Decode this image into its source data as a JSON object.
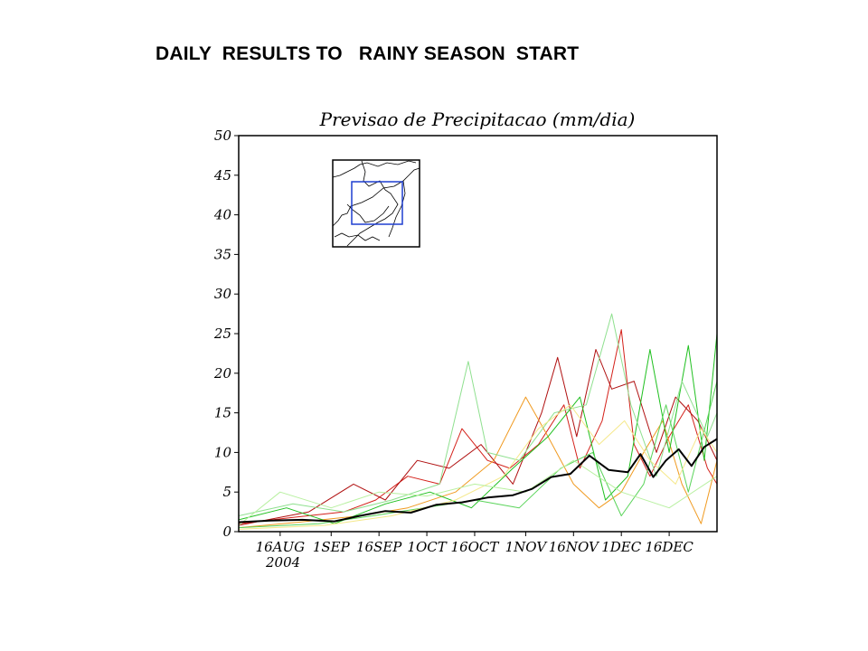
{
  "slide": {
    "title": "DAILY  RESULTS TO   RAINY SEASON  START"
  },
  "chart_data": {
    "type": "line",
    "title": "Previsao de Precipitacao (mm/dia)",
    "xlabel": "",
    "ylabel": "",
    "ylim": [
      0,
      50
    ],
    "yticks": [
      0,
      5,
      10,
      15,
      20,
      25,
      30,
      35,
      40,
      45,
      50
    ],
    "x_start": "2004-08-03",
    "x_end": "2004-12-31",
    "xtick_labels": [
      {
        "date": "2004-08-16",
        "label": "16AUG"
      },
      {
        "date": "2004-09-01",
        "label": "1SEP"
      },
      {
        "date": "2004-09-16",
        "label": "16SEP"
      },
      {
        "date": "2004-10-01",
        "label": "1OCT"
      },
      {
        "date": "2004-10-16",
        "label": "16OCT"
      },
      {
        "date": "2004-11-01",
        "label": "1NOV"
      },
      {
        "date": "2004-11-16",
        "label": "16NOV"
      },
      {
        "date": "2004-12-01",
        "label": "1DEC"
      },
      {
        "date": "2004-12-16",
        "label": "16DEC"
      }
    ],
    "year_label": "2004",
    "grid": false,
    "inset_map": {
      "region": "South America (Brazil) with highlighted study box",
      "box_color": "#1f3fd0"
    },
    "series": [
      {
        "color": "#000000",
        "width": 2,
        "points": [
          [
            "2004-08-03",
            1.2
          ],
          [
            "2004-08-13",
            1.4
          ],
          [
            "2004-08-23",
            1.5
          ],
          [
            "2004-09-02",
            1.3
          ],
          [
            "2004-09-10",
            2.0
          ],
          [
            "2004-09-18",
            2.6
          ],
          [
            "2004-09-26",
            2.4
          ],
          [
            "2004-10-04",
            3.4
          ],
          [
            "2004-10-12",
            3.7
          ],
          [
            "2004-10-20",
            4.3
          ],
          [
            "2004-10-28",
            4.6
          ],
          [
            "2004-11-03",
            5.4
          ],
          [
            "2004-11-09",
            6.9
          ],
          [
            "2004-11-15",
            7.3
          ],
          [
            "2004-11-21",
            9.6
          ],
          [
            "2004-11-27",
            7.8
          ],
          [
            "2004-12-03",
            7.5
          ],
          [
            "2004-12-07",
            9.8
          ],
          [
            "2004-12-11",
            6.9
          ],
          [
            "2004-12-15",
            9.0
          ],
          [
            "2004-12-19",
            10.4
          ],
          [
            "2004-12-23",
            8.3
          ],
          [
            "2004-12-27",
            10.7
          ],
          [
            "2004-12-31",
            11.7
          ]
        ]
      },
      {
        "color": "#d4211a",
        "width": 1,
        "points": [
          [
            "2004-08-03",
            1.0
          ],
          [
            "2004-08-20",
            1.8
          ],
          [
            "2004-09-05",
            2.5
          ],
          [
            "2004-09-15",
            4.0
          ],
          [
            "2004-09-25",
            7.0
          ],
          [
            "2004-10-05",
            6.0
          ],
          [
            "2004-10-12",
            13.0
          ],
          [
            "2004-10-20",
            9.0
          ],
          [
            "2004-10-27",
            8.0
          ],
          [
            "2004-11-05",
            11.0
          ],
          [
            "2004-11-13",
            16.0
          ],
          [
            "2004-11-18",
            8.0
          ],
          [
            "2004-11-25",
            14.0
          ],
          [
            "2004-12-01",
            25.5
          ],
          [
            "2004-12-05",
            11.0
          ],
          [
            "2004-12-10",
            7.0
          ],
          [
            "2004-12-16",
            12.0
          ],
          [
            "2004-12-22",
            16.0
          ],
          [
            "2004-12-28",
            8.0
          ],
          [
            "2004-12-31",
            6.0
          ]
        ]
      },
      {
        "color": "#b01010",
        "width": 1,
        "points": [
          [
            "2004-08-03",
            0.8
          ],
          [
            "2004-08-25",
            2.5
          ],
          [
            "2004-09-08",
            6.0
          ],
          [
            "2004-09-18",
            4.0
          ],
          [
            "2004-09-28",
            9.0
          ],
          [
            "2004-10-08",
            8.0
          ],
          [
            "2004-10-18",
            11.0
          ],
          [
            "2004-10-28",
            6.0
          ],
          [
            "2004-11-06",
            15.0
          ],
          [
            "2004-11-11",
            22.0
          ],
          [
            "2004-11-17",
            12.0
          ],
          [
            "2004-11-23",
            23.0
          ],
          [
            "2004-11-28",
            18.0
          ],
          [
            "2004-12-05",
            19.0
          ],
          [
            "2004-12-12",
            10.0
          ],
          [
            "2004-12-18",
            17.0
          ],
          [
            "2004-12-25",
            14.0
          ],
          [
            "2004-12-31",
            9.0
          ]
        ]
      },
      {
        "color": "#f09a20",
        "width": 1,
        "points": [
          [
            "2004-08-03",
            0.5
          ],
          [
            "2004-08-22",
            1.2
          ],
          [
            "2004-09-10",
            2.0
          ],
          [
            "2004-09-25",
            3.0
          ],
          [
            "2004-10-10",
            5.0
          ],
          [
            "2004-10-22",
            9.0
          ],
          [
            "2004-11-01",
            17.0
          ],
          [
            "2004-11-08",
            12.0
          ],
          [
            "2004-11-16",
            6.0
          ],
          [
            "2004-11-24",
            3.0
          ],
          [
            "2004-12-01",
            5.0
          ],
          [
            "2004-12-08",
            10.0
          ],
          [
            "2004-12-14",
            14.0
          ],
          [
            "2004-12-20",
            6.0
          ],
          [
            "2004-12-26",
            1.0
          ],
          [
            "2004-12-31",
            9.0
          ]
        ]
      },
      {
        "color": "#20c020",
        "width": 1,
        "points": [
          [
            "2004-08-03",
            1.5
          ],
          [
            "2004-08-18",
            3.0
          ],
          [
            "2004-09-02",
            1.0
          ],
          [
            "2004-09-18",
            3.5
          ],
          [
            "2004-10-02",
            5.0
          ],
          [
            "2004-10-15",
            3.0
          ],
          [
            "2004-10-28",
            8.0
          ],
          [
            "2004-11-08",
            12.0
          ],
          [
            "2004-11-18",
            17.0
          ],
          [
            "2004-11-26",
            4.0
          ],
          [
            "2004-12-03",
            7.0
          ],
          [
            "2004-12-10",
            23.0
          ],
          [
            "2004-12-16",
            10.0
          ],
          [
            "2004-12-22",
            23.5
          ],
          [
            "2004-12-27",
            9.0
          ],
          [
            "2004-12-31",
            25.0
          ]
        ]
      },
      {
        "color": "#8fe08f",
        "width": 1,
        "points": [
          [
            "2004-08-03",
            2.0
          ],
          [
            "2004-08-20",
            3.5
          ],
          [
            "2004-09-05",
            2.5
          ],
          [
            "2004-09-20",
            4.0
          ],
          [
            "2004-10-05",
            6.0
          ],
          [
            "2004-10-14",
            21.5
          ],
          [
            "2004-10-20",
            10.0
          ],
          [
            "2004-10-30",
            9.0
          ],
          [
            "2004-11-10",
            15.0
          ],
          [
            "2004-11-20",
            16.0
          ],
          [
            "2004-11-28",
            27.5
          ],
          [
            "2004-12-04",
            16.0
          ],
          [
            "2004-12-12",
            7.0
          ],
          [
            "2004-12-20",
            19.0
          ],
          [
            "2004-12-28",
            12.0
          ],
          [
            "2004-12-31",
            15.0
          ]
        ]
      },
      {
        "color": "#5ad45a",
        "width": 1,
        "points": [
          [
            "2004-08-03",
            0.5
          ],
          [
            "2004-08-28",
            1.0
          ],
          [
            "2004-09-14",
            2.0
          ],
          [
            "2004-09-30",
            3.0
          ],
          [
            "2004-10-16",
            4.0
          ],
          [
            "2004-10-30",
            3.0
          ],
          [
            "2004-11-12",
            8.0
          ],
          [
            "2004-11-22",
            10.0
          ],
          [
            "2004-12-01",
            2.0
          ],
          [
            "2004-12-08",
            6.0
          ],
          [
            "2004-12-15",
            16.0
          ],
          [
            "2004-12-22",
            5.0
          ],
          [
            "2004-12-31",
            19.0
          ]
        ]
      },
      {
        "color": "#f5e88a",
        "width": 1,
        "points": [
          [
            "2004-08-03",
            0.3
          ],
          [
            "2004-08-30",
            0.8
          ],
          [
            "2004-09-20",
            2.0
          ],
          [
            "2004-10-10",
            4.0
          ],
          [
            "2004-10-25",
            7.0
          ],
          [
            "2004-11-05",
            13.0
          ],
          [
            "2004-11-15",
            16.0
          ],
          [
            "2004-11-24",
            11.0
          ],
          [
            "2004-12-02",
            14.0
          ],
          [
            "2004-12-10",
            9.0
          ],
          [
            "2004-12-18",
            6.0
          ],
          [
            "2004-12-26",
            13.0
          ],
          [
            "2004-12-31",
            10.0
          ]
        ]
      },
      {
        "color": "#b8f0a0",
        "width": 1,
        "points": [
          [
            "2004-08-03",
            0.8
          ],
          [
            "2004-08-16",
            5.0
          ],
          [
            "2004-09-01",
            3.0
          ],
          [
            "2004-09-16",
            5.0
          ],
          [
            "2004-10-01",
            4.5
          ],
          [
            "2004-10-16",
            6.0
          ],
          [
            "2004-11-01",
            5.0
          ],
          [
            "2004-11-16",
            9.0
          ],
          [
            "2004-12-01",
            5.0
          ],
          [
            "2004-12-16",
            3.0
          ],
          [
            "2004-12-31",
            7.0
          ]
        ]
      }
    ]
  }
}
